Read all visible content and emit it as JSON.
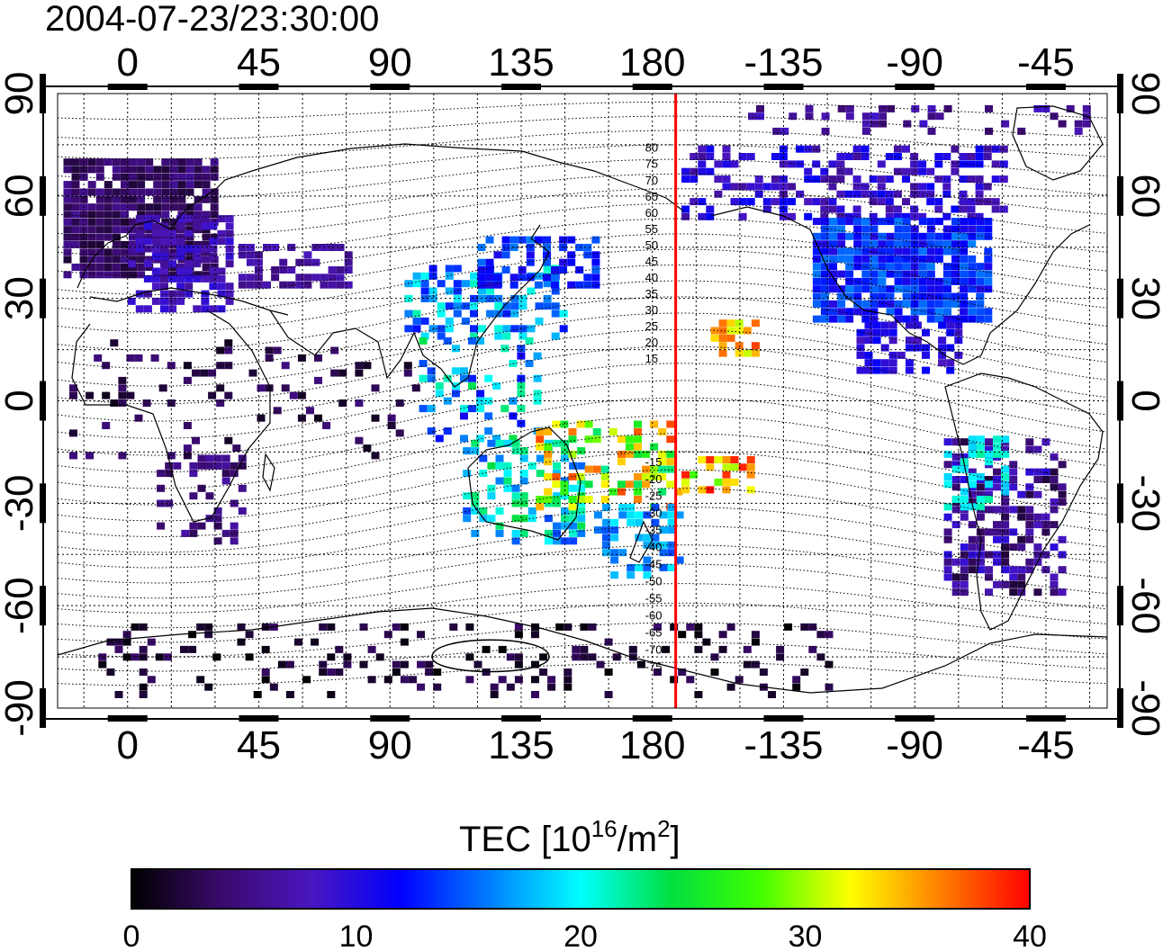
{
  "map": {
    "timestamp": "2004-07-23/23:30:00",
    "longitude_ticks": [
      "0",
      "45",
      "90",
      "135",
      "180",
      "-135",
      "-90",
      "-45"
    ],
    "longitude_tick_values": [
      0,
      45,
      90,
      135,
      180,
      225,
      270,
      315
    ],
    "left_latitude_ticks": [
      "90",
      "60",
      "30",
      "0",
      "-30",
      "-60",
      "-90"
    ],
    "right_latitude_ticks": [
      "90",
      "60",
      "30",
      "0",
      "-30",
      "-60",
      "-90"
    ],
    "latitude_tick_values": [
      90,
      60,
      30,
      0,
      -30,
      -60,
      -90
    ],
    "longitude_range": [
      -24,
      336
    ],
    "latitude_range": [
      -90,
      90
    ],
    "meridian_line_lon": 188,
    "dip_labels_north": [
      "80",
      "75",
      "70",
      "65",
      "60",
      "55",
      "50",
      "45",
      "40",
      "35",
      "30",
      "25",
      "20",
      "15"
    ],
    "dip_labels_south": [
      "-15",
      "-20",
      "-25",
      "-30",
      "-35",
      "-40",
      "-45",
      "-50",
      "-55",
      "-60",
      "-65",
      "-70",
      "-75"
    ],
    "colors": {
      "meridian": "#ff0000",
      "grid": "#000000",
      "coast": "#000000"
    }
  },
  "colorbar": {
    "title_main": "TEC  [10",
    "title_sup1": "16",
    "title_mid": "/m",
    "title_sup2": "2",
    "title_end": "]",
    "tick_labels": [
      "0",
      "10",
      "20",
      "30",
      "40"
    ],
    "tick_values": [
      0,
      10,
      20,
      30,
      40
    ],
    "min": 0,
    "max": 40,
    "stops": [
      "#000000",
      "#3a0a6b",
      "#4a16c0",
      "#0000ff",
      "#0080ff",
      "#00ffff",
      "#00e040",
      "#40ff00",
      "#ffff00",
      "#ff8000",
      "#ff0000"
    ]
  }
}
